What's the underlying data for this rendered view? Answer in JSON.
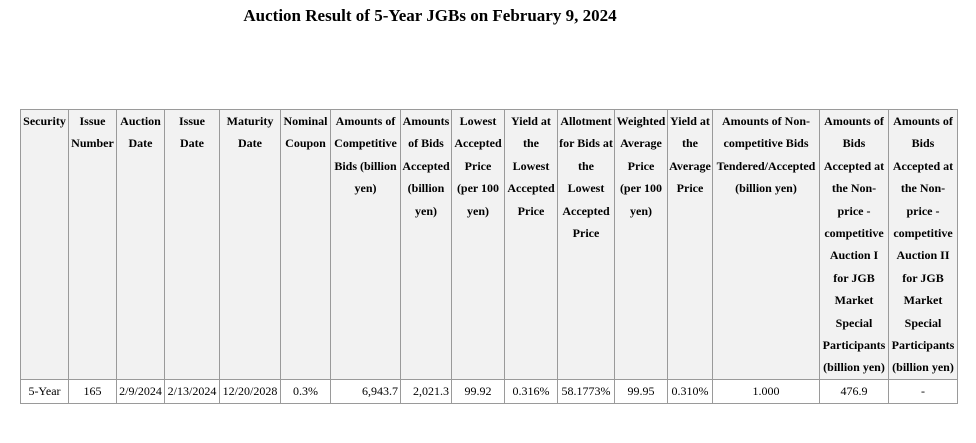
{
  "page_title": "Auction Result of 5-Year JGBs on February 9, 2024",
  "table": {
    "headers": {
      "security": "Security",
      "issue_number": "Issue Number",
      "auction_date": "Auction Date",
      "issue_date": "Issue Date",
      "maturity_date": "Maturity Date",
      "nominal_coupon": "Nominal Coupon",
      "competitive_bids": "Amounts of Competitive Bids (billion yen)",
      "bids_accepted": "Amounts of Bids Accepted (billion yen)",
      "lowest_price": "Lowest Accepted Price (per 100 yen)",
      "yield_lowest": "Yield at the Lowest Accepted Price",
      "allotment": "Allotment for Bids at the Lowest Accepted Price",
      "weighted_avg": "Weighted Average Price (per 100 yen)",
      "yield_avg": "Yield at the Average Price",
      "noncompetitive": "Amounts of Non-competitive Bids Tendered/Accepted (billion yen)",
      "nonprice_1": "Amounts of Bids Accepted at the Non-price - competitive Auction I for JGB Market Special Participants (billion yen)",
      "nonprice_2": "Amounts of Bids Accepted at the Non-price - competitive Auction II for JGB Market Special Participants (billion yen)"
    },
    "row": {
      "security": "5-Year",
      "issue_number": "165",
      "auction_date": "2/9/2024",
      "issue_date": "2/13/2024",
      "maturity_date": "12/20/2028",
      "nominal_coupon": "0.3%",
      "competitive_bids": "6,943.7",
      "bids_accepted": "2,021.3",
      "lowest_price": "99.92",
      "yield_lowest": "0.316%",
      "allotment": "58.1773%",
      "weighted_avg": "99.95",
      "yield_avg": "0.310%",
      "noncompetitive": "1.000",
      "nonprice_1": "476.9",
      "nonprice_2": "-"
    }
  }
}
